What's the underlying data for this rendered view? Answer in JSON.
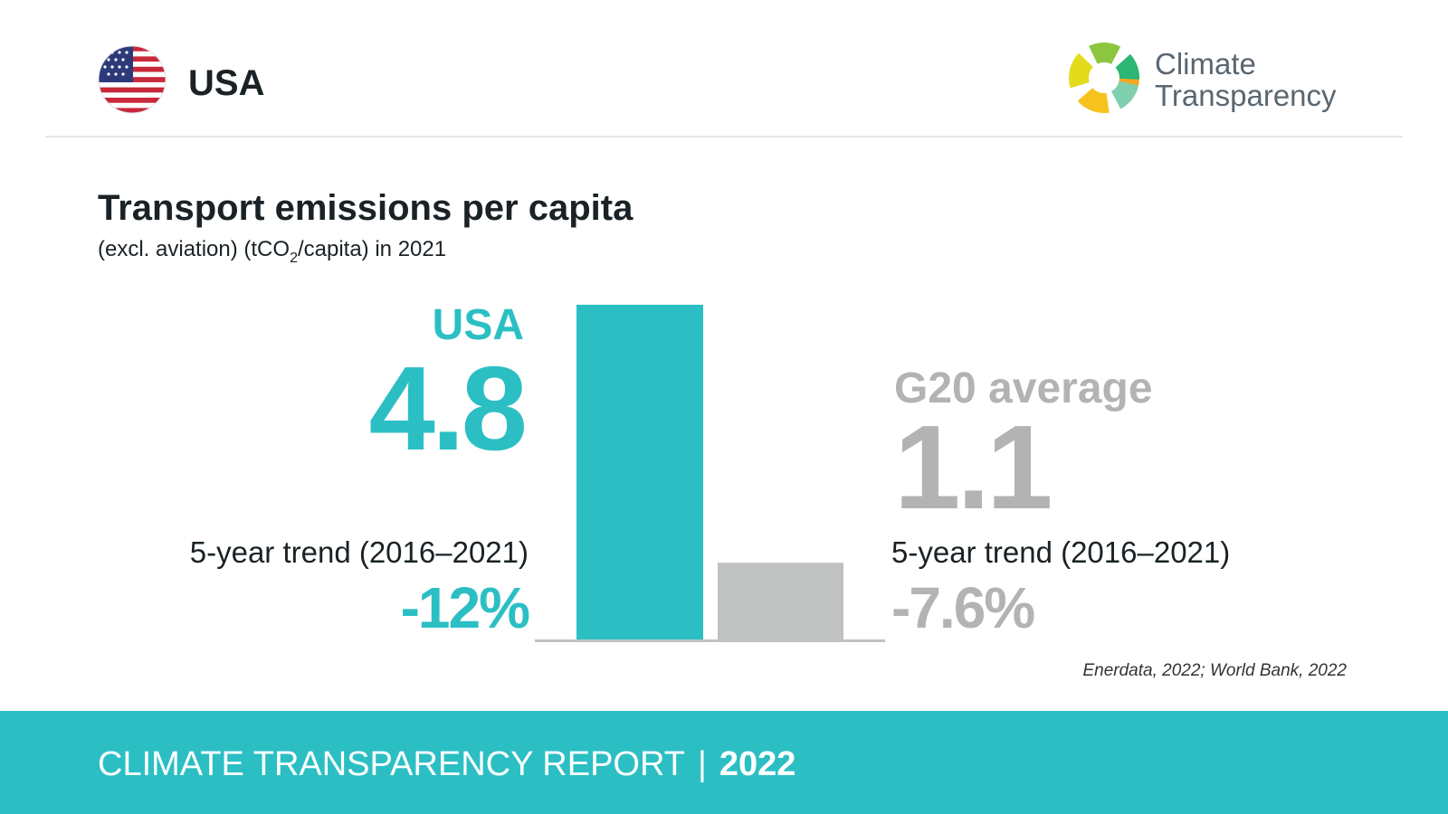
{
  "header": {
    "country": "USA",
    "logo": [
      "Climate",
      "Transparency"
    ]
  },
  "chart_data": {
    "type": "bar",
    "title": "Transport emissions per capita",
    "subtitle": [
      "(excl. aviation) (tCO",
      "2",
      "/capita) in 2021"
    ],
    "categories": [
      "USA",
      "G20 average"
    ],
    "values": [
      4.8,
      1.1
    ],
    "colors": [
      "#2bbfc4",
      "#c0c2c2"
    ],
    "label_colors": [
      "#2bbfc4",
      "#b3b3b3"
    ],
    "trend_labels": [
      "5-year trend (2016–2021)",
      "5-year trend (2016–2021)"
    ],
    "trend_values": [
      -12,
      -7.6
    ],
    "trend_value_labels": [
      "-12%",
      "-7.6%"
    ],
    "source": "Enerdata, 2022; World Bank, 2022"
  },
  "footer": {
    "title": "CLIMATE TRANSPARENCY REPORT",
    "separator": "|",
    "year": "2022"
  }
}
